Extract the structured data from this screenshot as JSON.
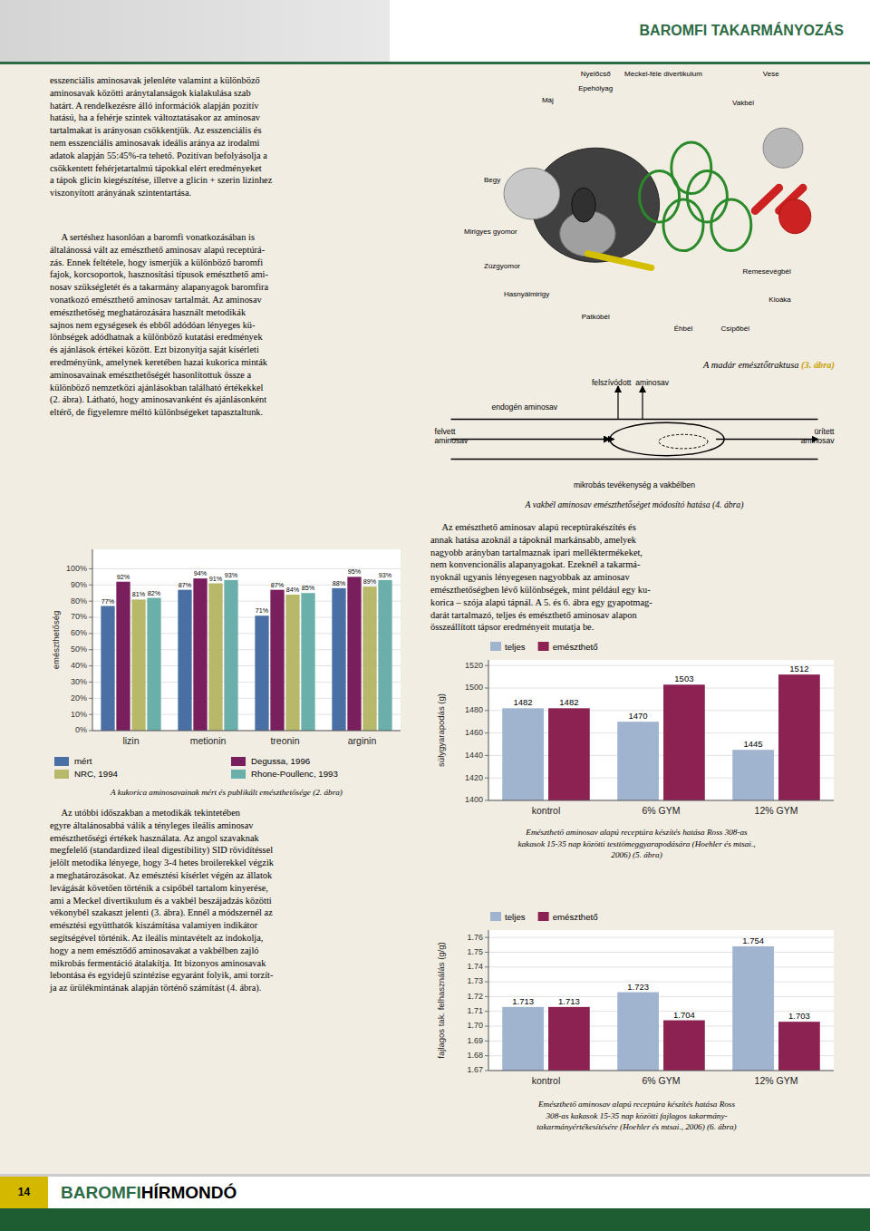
{
  "chart_data": [
    {
      "type": "bar",
      "title": "A kukorica aminosavainak mért és publikált emészthetősége (2. ábra)",
      "ylabel": "emészthetőség",
      "categories": [
        "lizin",
        "metionin",
        "treonin",
        "arginin"
      ],
      "series": [
        {
          "name": "mért",
          "color": "#4a6fa5",
          "values": [
            77,
            87,
            71,
            88
          ],
          "value_labels": [
            "77%",
            "87%",
            "71%",
            "88%"
          ]
        },
        {
          "name": "Degussa, 1996",
          "color": "#7a1f5e",
          "values": [
            92,
            94,
            87,
            95
          ],
          "value_labels": [
            "92%",
            "94%",
            "87%",
            "95%"
          ]
        },
        {
          "name": "NRC, 1994",
          "color": "#b8b86a",
          "values": [
            81,
            91,
            84,
            89
          ],
          "value_labels": [
            "81%",
            "91%",
            "84%",
            "89%"
          ]
        },
        {
          "name": "Rhone-Poullenc, 1993",
          "color": "#6aafaa",
          "values": [
            82,
            93,
            85,
            93
          ],
          "value_labels": [
            "82%",
            "93%",
            "85%",
            "93%"
          ]
        }
      ],
      "ylim": [
        0,
        112
      ],
      "yticks": [
        {
          "value": 0,
          "label": "0%"
        },
        {
          "value": 10,
          "label": "10%"
        },
        {
          "value": 20,
          "label": "20%"
        },
        {
          "value": 30,
          "label": "30%"
        },
        {
          "value": 40,
          "label": "40%"
        },
        {
          "value": 50,
          "label": "50%"
        },
        {
          "value": 60,
          "label": "60%"
        },
        {
          "value": 70,
          "label": "70%"
        },
        {
          "value": 80,
          "label": "80%"
        },
        {
          "value": 90,
          "label": "90%"
        },
        {
          "value": 100,
          "label": "100%"
        }
      ],
      "grid": true,
      "legend": "bottom",
      "data_labels": true
    },
    {
      "type": "bar",
      "title": "Emészthető aminosav alapú receptúra készítés hatása Ross 308-as\nkakasok 15-35 nap közötti testtömeggyarapodására (Hoehler és mtsai.,\n2006) (5. ábra)",
      "ylabel": "súlygyarapodás (g)",
      "categories": [
        "kontrol",
        "6% GYM",
        "12% GYM"
      ],
      "series": [
        {
          "name": "teljes",
          "color": "#a0b4d0",
          "values": [
            1482,
            1470,
            1445
          ]
        },
        {
          "name": "emészthető",
          "color": "#8b2252",
          "values": [
            1482,
            1503,
            1512
          ]
        }
      ],
      "ylim": [
        1400,
        1525
      ],
      "yticks": [
        1400,
        1420,
        1440,
        1460,
        1480,
        1500,
        1520
      ],
      "grid": true,
      "legend": "upper left",
      "data_labels": true
    },
    {
      "type": "bar",
      "title": "Emészthető aminosav alapú receptúra készítés hatása Ross\n308-as kakasok 15-35 nap közötti fajlagos takarmány-\ntakarmányértékesítésére (Hoehler és mtsai., 2006) (6. ábra)",
      "ylabel": "fajlagos tak. felhasználás (g/g)",
      "categories": [
        "kontrol",
        "6% GYM",
        "12% GYM"
      ],
      "series": [
        {
          "name": "teljes",
          "color": "#a0b4d0",
          "values": [
            1.713,
            1.723,
            1.754
          ]
        },
        {
          "name": "emészthető",
          "color": "#8b2252",
          "values": [
            1.713,
            1.704,
            1.703
          ]
        }
      ],
      "ylim": [
        1.67,
        1.765
      ],
      "yticks": [
        1.67,
        1.68,
        1.69,
        {
          "value": 1.7,
          "label": "1.70"
        },
        1.71,
        1.72,
        1.73,
        1.74,
        1.75,
        1.76
      ],
      "grid": true,
      "legend": "upper left",
      "data_labels": true
    }
  ],
  "page": {
    "header": "BAROMFI TAKARMÁNYOZÁS",
    "footer_label": "14",
    "footer_title": [
      "BAROMFI",
      "HÍRMONDÓ"
    ],
    "paragraphs": [
      "esszenciális aminosavak jelenléte valamint a különböző\naminosavak közötti aránytalanságok kialakulása szab\nhatárt. A rendelkezésre álló információk alapján pozitív\nhatású, ha a fehérje szintek változtatásakor az aminosav\ntartalmakat is arányosan csökkentjük. Az esszenciális és\nnem esszenciális aminosavak ideális aránya az irodalmi\nadatok alapján 55:45%-ra tehető. Pozitívan befolyásolja a\ncsökkentett fehérjetartalmú tápokkal elért eredményeket\na tápok glicin kiegészítése, illetve a glicin + szerin lizinhez\nviszonyított arányának szintentartása.",
      "     A sertéshez hasonlóan a baromfi vonatkozásában is\náltalánossá vált az emészthető aminosav alapú receptúrá-\nzás. Ennek feltétele, hogy ismerjük a különböző baromfi\nfajok, korcsoportok, hasznosítási típusok emészthető ami-\nnosav szükségletét és a takarmány alapanyagok baromfira\nvonatkozó emészthető aminosav tartalmát. Az aminosav\nemészthetőség meghatározására használt metodikák\nsajnos nem egységesek és ebből adódóan lényeges kü-\nlönbségek adódhatnak a különböző kutatási eredmények\nés ajánlások értékei között. Ezt bizonyítja saját kísérleti\neredményünk, amelynek keretében hazai kukorica minták\naminosavainak emészthetőségét hasonlítottuk össze a\nkülönböző nemzetközi ajánlásokban található értékekkel\n(2. ábra). Látható, hogy aminosavanként és ajánlásonként\neltérő, de figyelemre méltó különbségeket tapasztaltunk.",
      "     Az utóbbi időszakban a metodikák tekintetében\negyre általánosabbá válik a tényleges ileális aminosav\nemészthetőségi értékek használata. Az angol szavaknak\nmegfelelő (standardized ileal digestibility) SID rövidítéssel\njelölt metodika lényege, hogy 3-4 hetes broilerekkel végzik\na meghatározásokat. Az emésztési kísérlet végén az állatok\nlevágását követően történik a csipőbél tartalom kinyerése,\nami a Meckel divertikulum és a vakbél beszájadzás közötti\nvékonybél szakaszt jelenti (3. ábra). Ennél a módszernél az\nemésztési együtthatók kiszámítása valamiyen indikátor\nsegítségével történik. Az ileális mintavételt az indokolja,\nhogy a nem emésztődő aminosavakat a vakbélben zajló\nmikrobás fermentáció átalakítja. Itt bizonyos aminosavak\nlebontása és egyidejű szintézise egyaránt folyik, ami torzít-\nja az ürülékmintának alapján történő számítást (4. ábra).",
      "     Az emészthető aminosav alapú receptúrakészítés és\nannak hatása azoknál a tápoknál markánsabb, amelyek\nnagyobb arányban tartalmaznak ipari melléktermékeket,\nnem konvencionális alapanyagokat. Ezeknél a takarmá-\nnyoknál ugyanis lényegesen nagyobbak az aminosav\nemészthetőségben lévő különbségek, mint például egy ku-\nkorica – szója alapú tápnál. A 5. és 6. ábra egy gyapotmag-\ndarát tartalmazó, teljes és emészthető aminosav alapon\nösszeállított tápsor eredményeit mutatja be."
    ]
  },
  "figures": [
    {
      "caption": "A madár emésztőtraktusa ",
      "caption_ref": "(3. ábra)",
      "labels": [
        "Nyelőcső",
        "Meckel-féle divertikulum",
        "Vese",
        "Epehólyag",
        "Máj",
        "Vakbél",
        "Begy",
        "Mirigyes gyomor",
        "Zúzgyomor",
        "Hasnyálmirigy",
        "Patkóbél",
        "Éhbél",
        "Csípőbél",
        "Remesevégbél",
        "Kloáka"
      ]
    },
    {
      "caption": "A vakbél aminosav emészthetőséget módosító hatása ",
      "caption_ref": "(4. ábra)",
      "labels": [
        "felszívódott  aminosav",
        "endogén aminosav",
        "felvett\naminosav",
        "ürített\naminosav",
        "mikrobás tevékenység a vakbélben"
      ]
    }
  ]
}
